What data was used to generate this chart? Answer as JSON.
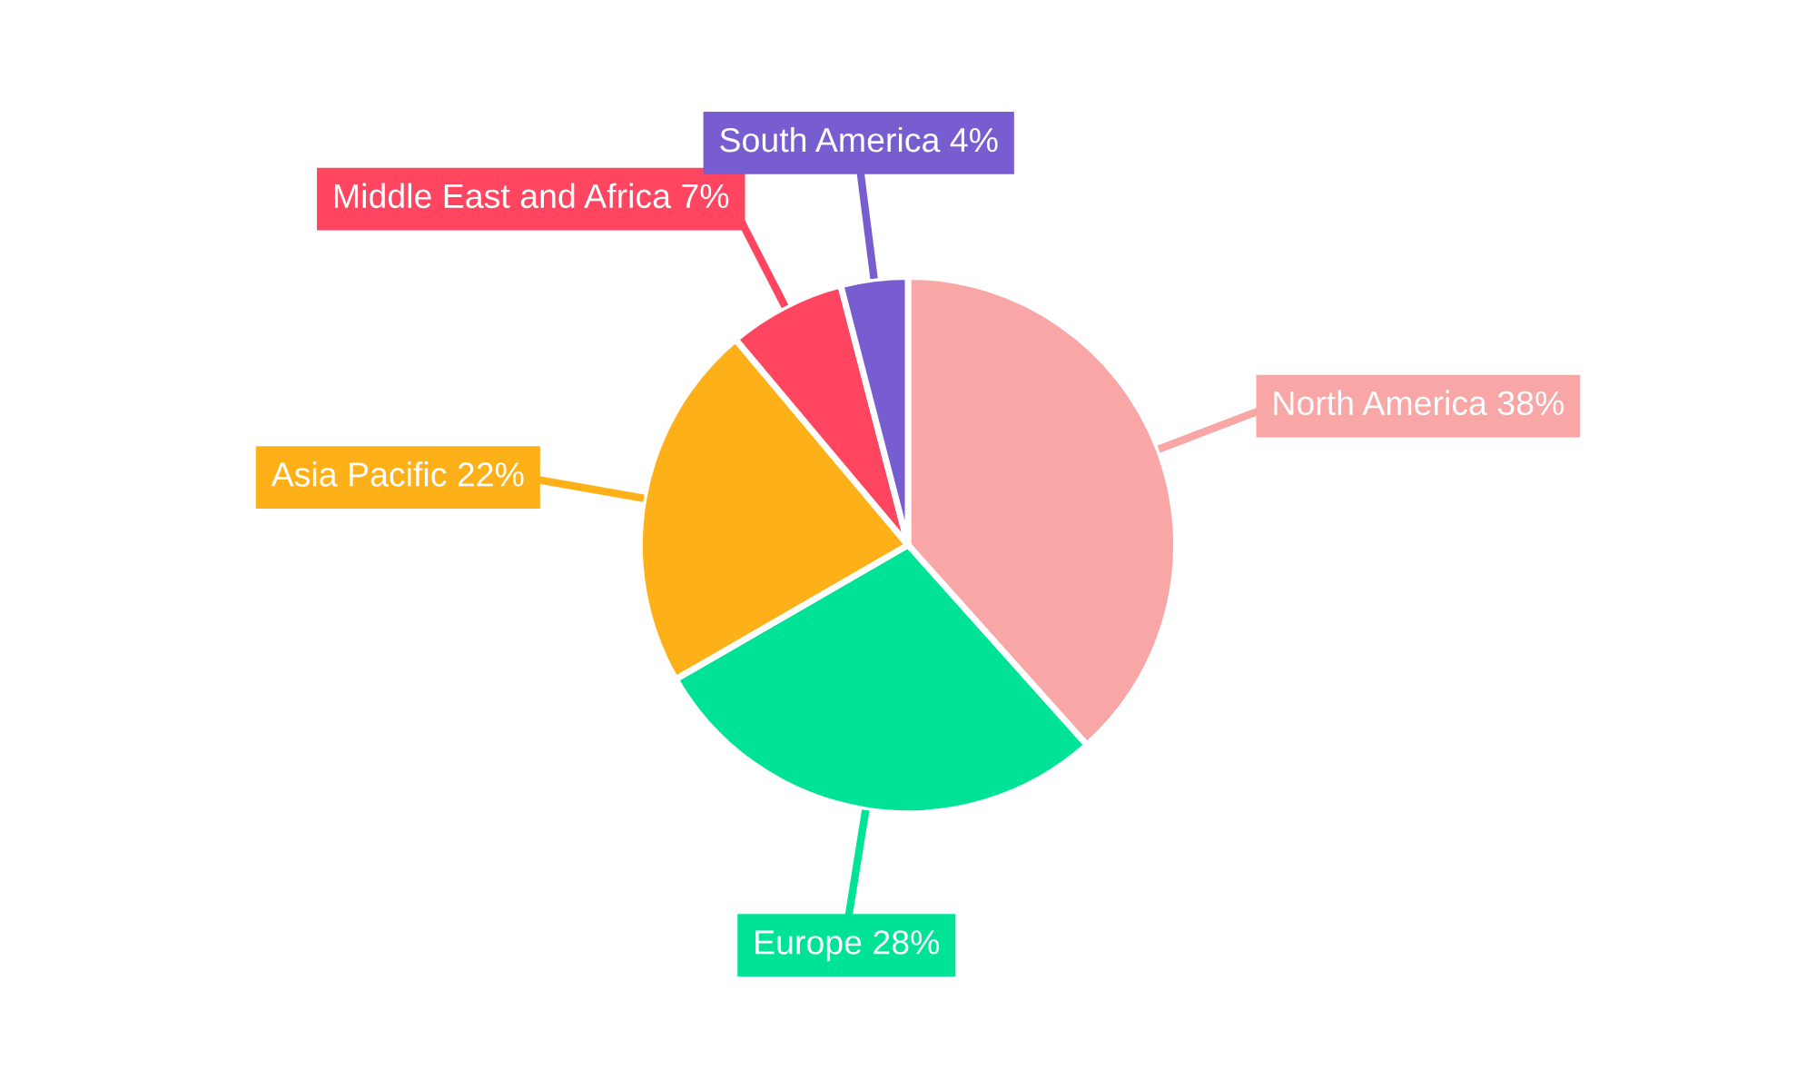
{
  "chart_data": {
    "type": "pie",
    "categories": [
      "North America",
      "Europe",
      "Asia Pacific",
      "Middle East and Africa",
      "South America"
    ],
    "values": [
      38,
      28,
      22,
      7,
      4
    ],
    "colors": [
      "#f9a6a7",
      "#00e396",
      "#feb019",
      "#ff4560",
      "#775dd0"
    ],
    "value_labels": [
      "38%",
      "28%",
      "22%",
      "7%",
      "4%"
    ],
    "legend": false
  }
}
